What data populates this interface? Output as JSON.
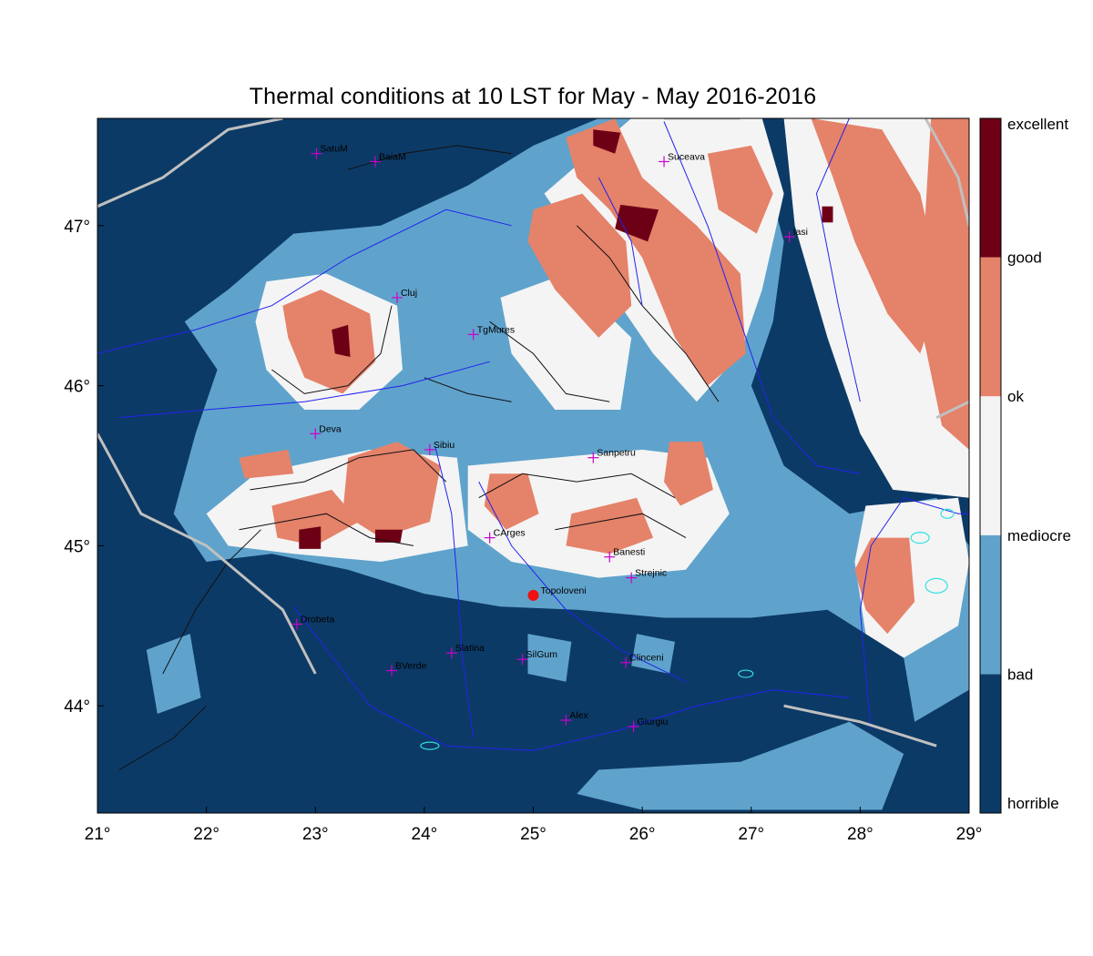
{
  "title": "Thermal conditions at 10 LST for May - May  2016-2016",
  "x_ticks": [
    {
      "value": 21,
      "label": "21°"
    },
    {
      "value": 22,
      "label": "22°"
    },
    {
      "value": 23,
      "label": "23°"
    },
    {
      "value": 24,
      "label": "24°"
    },
    {
      "value": 25,
      "label": "25°"
    },
    {
      "value": 26,
      "label": "26°"
    },
    {
      "value": 27,
      "label": "27°"
    },
    {
      "value": 28,
      "label": "28°"
    },
    {
      "value": 29,
      "label": "29°"
    }
  ],
  "y_ticks": [
    {
      "value": 44,
      "label": "44°"
    },
    {
      "value": 45,
      "label": "45°"
    },
    {
      "value": 46,
      "label": "46°"
    },
    {
      "value": 47,
      "label": "47°"
    }
  ],
  "extent": {
    "lon": [
      21,
      29
    ],
    "lat": [
      43.33,
      47.67
    ]
  },
  "legend": [
    {
      "label": "horrible",
      "color": "#0c3a66"
    },
    {
      "label": "bad",
      "color": "#5fa3cc"
    },
    {
      "label": "mediocre",
      "color": "#f4f4f4"
    },
    {
      "label": "ok",
      "color": "#e5826a"
    },
    {
      "label": "good",
      "color": "#6e0016"
    },
    {
      "label": "excellent",
      "color": ""
    }
  ],
  "legend_text": [
    "horrible",
    "bad",
    "mediocre",
    "ok",
    "good",
    "excellent"
  ],
  "colors": {
    "horrible": "#0c3a66",
    "bad": "#5fa3cc",
    "mediocre": "#f4f4f4",
    "ok": "#e5826a",
    "good": "#6e0016",
    "rivers": "#2222ee",
    "border": "#c0c0c0",
    "lakes": "#33e0e0",
    "station_marker": "#cc00cc",
    "highlight_marker": "#ee1111"
  },
  "stations": [
    {
      "name": "SatuM",
      "lon": 23.01,
      "lat": 47.45
    },
    {
      "name": "BaiaM",
      "lon": 23.55,
      "lat": 47.4
    },
    {
      "name": "Suceava",
      "lon": 26.2,
      "lat": 47.4
    },
    {
      "name": "Iasi",
      "lon": 27.35,
      "lat": 46.93
    },
    {
      "name": "Cluj",
      "lon": 23.75,
      "lat": 46.55
    },
    {
      "name": "TgMures",
      "lon": 24.45,
      "lat": 46.32
    },
    {
      "name": "Deva",
      "lon": 23.0,
      "lat": 45.7
    },
    {
      "name": "Sibiu",
      "lon": 24.05,
      "lat": 45.6
    },
    {
      "name": "Sanpetru",
      "lon": 25.55,
      "lat": 45.55
    },
    {
      "name": "CArges",
      "lon": 24.6,
      "lat": 45.05
    },
    {
      "name": "Banesti",
      "lon": 25.7,
      "lat": 44.93
    },
    {
      "name": "Strejnic",
      "lon": 25.9,
      "lat": 44.8
    },
    {
      "name": "Drobeta",
      "lon": 22.83,
      "lat": 44.51
    },
    {
      "name": "Slatina",
      "lon": 24.25,
      "lat": 44.33
    },
    {
      "name": "SilGum",
      "lon": 24.9,
      "lat": 44.29
    },
    {
      "name": "Clinceni",
      "lon": 25.85,
      "lat": 44.27
    },
    {
      "name": "BVerde",
      "lon": 23.7,
      "lat": 44.22
    },
    {
      "name": "Alex",
      "lon": 25.3,
      "lat": 43.91
    },
    {
      "name": "Giurgiu",
      "lon": 25.92,
      "lat": 43.87
    }
  ],
  "highlight_station": {
    "name": "Topoloveni",
    "lon": 25.0,
    "lat": 44.69
  },
  "regions": [
    {
      "level": "bad",
      "pts": [
        [
          22.2,
          46.6
        ],
        [
          22.8,
          46.95
        ],
        [
          23.6,
          47.0
        ],
        [
          24.4,
          47.25
        ],
        [
          25.0,
          47.5
        ],
        [
          25.6,
          47.67
        ],
        [
          26.6,
          47.67
        ],
        [
          27.1,
          47.4
        ],
        [
          27.3,
          46.9
        ],
        [
          27.2,
          46.4
        ],
        [
          27.0,
          46.0
        ],
        [
          27.3,
          45.5
        ],
        [
          27.9,
          45.2
        ],
        [
          28.7,
          45.3
        ],
        [
          29.0,
          45.0
        ],
        [
          29.0,
          44.1
        ],
        [
          28.5,
          43.9
        ],
        [
          28.4,
          44.3
        ],
        [
          27.7,
          44.6
        ],
        [
          27.0,
          44.55
        ],
        [
          26.2,
          44.55
        ],
        [
          25.4,
          44.6
        ],
        [
          24.7,
          44.62
        ],
        [
          24.0,
          44.7
        ],
        [
          23.3,
          44.85
        ],
        [
          22.6,
          44.95
        ],
        [
          22.0,
          44.9
        ],
        [
          21.7,
          45.2
        ],
        [
          21.9,
          45.7
        ],
        [
          22.1,
          46.1
        ],
        [
          21.8,
          46.4
        ]
      ]
    },
    {
      "level": "bad",
      "pts": [
        [
          21.45,
          44.35
        ],
        [
          21.85,
          44.45
        ],
        [
          21.95,
          44.05
        ],
        [
          21.55,
          43.95
        ]
      ]
    },
    {
      "level": "bad",
      "pts": [
        [
          25.6,
          43.6
        ],
        [
          26.9,
          43.65
        ],
        [
          27.9,
          43.9
        ],
        [
          28.4,
          43.7
        ],
        [
          28.2,
          43.35
        ],
        [
          26.0,
          43.35
        ],
        [
          25.4,
          43.45
        ]
      ]
    },
    {
      "level": "bad",
      "pts": [
        [
          24.95,
          44.45
        ],
        [
          25.35,
          44.4
        ],
        [
          25.3,
          44.15
        ],
        [
          24.95,
          44.2
        ]
      ]
    },
    {
      "level": "bad",
      "pts": [
        [
          25.95,
          44.45
        ],
        [
          26.3,
          44.4
        ],
        [
          26.25,
          44.2
        ],
        [
          25.9,
          44.25
        ]
      ]
    },
    {
      "level": "mediocre",
      "pts": [
        [
          25.9,
          47.67
        ],
        [
          27.1,
          47.67
        ],
        [
          27.3,
          47.2
        ],
        [
          27.1,
          46.6
        ],
        [
          26.9,
          46.2
        ],
        [
          26.5,
          45.9
        ],
        [
          26.1,
          46.2
        ],
        [
          25.7,
          46.6
        ],
        [
          25.3,
          47.0
        ],
        [
          25.1,
          47.2
        ]
      ]
    },
    {
      "level": "mediocre",
      "pts": [
        [
          27.3,
          47.67
        ],
        [
          29.0,
          47.67
        ],
        [
          29.0,
          45.3
        ],
        [
          28.3,
          45.35
        ],
        [
          28.0,
          45.7
        ],
        [
          27.7,
          46.3
        ],
        [
          27.4,
          47.0
        ]
      ]
    },
    {
      "level": "mediocre",
      "pts": [
        [
          28.05,
          45.25
        ],
        [
          28.9,
          45.3
        ],
        [
          29.0,
          44.9
        ],
        [
          28.9,
          44.5
        ],
        [
          28.4,
          44.3
        ],
        [
          28.05,
          44.45
        ],
        [
          27.95,
          44.9
        ]
      ]
    },
    {
      "level": "mediocre",
      "pts": [
        [
          22.55,
          46.65
        ],
        [
          23.1,
          46.7
        ],
        [
          23.75,
          46.5
        ],
        [
          23.8,
          46.1
        ],
        [
          23.4,
          45.85
        ],
        [
          22.9,
          45.85
        ],
        [
          22.55,
          46.1
        ],
        [
          22.45,
          46.4
        ]
      ]
    },
    {
      "level": "mediocre",
      "pts": [
        [
          22.45,
          45.45
        ],
        [
          23.5,
          45.6
        ],
        [
          24.3,
          45.55
        ],
        [
          24.4,
          45.0
        ],
        [
          23.6,
          44.9
        ],
        [
          22.8,
          44.95
        ],
        [
          22.2,
          45.0
        ],
        [
          22.0,
          45.2
        ]
      ]
    },
    {
      "level": "mediocre",
      "pts": [
        [
          24.4,
          45.5
        ],
        [
          25.2,
          45.55
        ],
        [
          26.0,
          45.6
        ],
        [
          26.6,
          45.55
        ],
        [
          26.8,
          45.2
        ],
        [
          26.4,
          44.85
        ],
        [
          25.6,
          44.8
        ],
        [
          24.8,
          44.9
        ],
        [
          24.4,
          45.1
        ]
      ]
    },
    {
      "level": "mediocre",
      "pts": [
        [
          24.7,
          46.55
        ],
        [
          25.3,
          46.7
        ],
        [
          25.9,
          46.3
        ],
        [
          25.8,
          45.85
        ],
        [
          25.2,
          45.85
        ],
        [
          24.8,
          46.2
        ]
      ]
    },
    {
      "level": "ok",
      "pts": [
        [
          25.3,
          47.55
        ],
        [
          25.75,
          47.67
        ],
        [
          26.0,
          47.3
        ],
        [
          26.5,
          47.0
        ],
        [
          26.9,
          46.7
        ],
        [
          26.95,
          46.2
        ],
        [
          26.6,
          46.0
        ],
        [
          26.3,
          46.3
        ],
        [
          26.0,
          46.8
        ],
        [
          25.7,
          47.1
        ],
        [
          25.4,
          47.3
        ]
      ]
    },
    {
      "level": "ok",
      "pts": [
        [
          25.0,
          47.1
        ],
        [
          25.45,
          47.2
        ],
        [
          25.85,
          46.9
        ],
        [
          25.9,
          46.5
        ],
        [
          25.6,
          46.3
        ],
        [
          25.2,
          46.6
        ],
        [
          24.95,
          46.9
        ]
      ]
    },
    {
      "level": "ok",
      "pts": [
        [
          26.6,
          47.45
        ],
        [
          27.0,
          47.5
        ],
        [
          27.2,
          47.2
        ],
        [
          27.05,
          46.95
        ],
        [
          26.7,
          47.1
        ]
      ]
    },
    {
      "level": "ok",
      "pts": [
        [
          27.55,
          47.67
        ],
        [
          28.2,
          47.6
        ],
        [
          28.55,
          47.2
        ],
        [
          28.75,
          46.6
        ],
        [
          28.55,
          46.2
        ],
        [
          28.25,
          46.45
        ],
        [
          27.95,
          46.9
        ],
        [
          27.75,
          47.3
        ]
      ]
    },
    {
      "level": "ok",
      "pts": [
        [
          28.65,
          47.67
        ],
        [
          29.0,
          47.67
        ],
        [
          29.0,
          45.6
        ],
        [
          28.75,
          45.75
        ],
        [
          28.55,
          46.4
        ],
        [
          28.6,
          47.1
        ]
      ]
    },
    {
      "level": "ok",
      "pts": [
        [
          28.1,
          45.05
        ],
        [
          28.45,
          45.05
        ],
        [
          28.5,
          44.65
        ],
        [
          28.25,
          44.45
        ],
        [
          28.05,
          44.6
        ],
        [
          27.95,
          44.85
        ]
      ]
    },
    {
      "level": "ok",
      "pts": [
        [
          22.7,
          46.5
        ],
        [
          23.05,
          46.6
        ],
        [
          23.5,
          46.45
        ],
        [
          23.55,
          46.15
        ],
        [
          23.25,
          45.95
        ],
        [
          22.9,
          46.05
        ],
        [
          22.75,
          46.3
        ]
      ]
    },
    {
      "level": "ok",
      "pts": [
        [
          23.3,
          45.55
        ],
        [
          23.75,
          45.65
        ],
        [
          24.15,
          45.5
        ],
        [
          24.05,
          45.15
        ],
        [
          23.6,
          45.05
        ],
        [
          23.25,
          45.2
        ]
      ]
    },
    {
      "level": "ok",
      "pts": [
        [
          22.6,
          45.25
        ],
        [
          23.15,
          45.35
        ],
        [
          23.4,
          45.15
        ],
        [
          23.0,
          45.0
        ],
        [
          22.65,
          45.05
        ]
      ]
    },
    {
      "level": "ok",
      "pts": [
        [
          22.3,
          45.55
        ],
        [
          22.75,
          45.6
        ],
        [
          22.8,
          45.45
        ],
        [
          22.35,
          45.42
        ]
      ]
    },
    {
      "level": "ok",
      "pts": [
        [
          24.6,
          45.45
        ],
        [
          24.95,
          45.45
        ],
        [
          25.05,
          45.2
        ],
        [
          24.75,
          45.1
        ],
        [
          24.55,
          45.25
        ]
      ]
    },
    {
      "level": "ok",
      "pts": [
        [
          25.35,
          45.2
        ],
        [
          25.95,
          45.3
        ],
        [
          26.1,
          45.05
        ],
        [
          25.7,
          44.95
        ],
        [
          25.3,
          45.0
        ]
      ]
    },
    {
      "level": "ok",
      "pts": [
        [
          26.25,
          45.65
        ],
        [
          26.55,
          45.65
        ],
        [
          26.65,
          45.35
        ],
        [
          26.35,
          45.25
        ],
        [
          26.2,
          45.4
        ]
      ]
    },
    {
      "level": "good",
      "pts": [
        [
          25.8,
          47.13
        ],
        [
          26.15,
          47.1
        ],
        [
          26.05,
          46.9
        ],
        [
          25.75,
          46.98
        ]
      ]
    },
    {
      "level": "good",
      "pts": [
        [
          25.55,
          47.6
        ],
        [
          25.8,
          47.58
        ],
        [
          25.75,
          47.45
        ],
        [
          25.55,
          47.5
        ]
      ]
    },
    {
      "level": "good",
      "pts": [
        [
          23.15,
          46.35
        ],
        [
          23.3,
          46.38
        ],
        [
          23.32,
          46.18
        ],
        [
          23.18,
          46.2
        ]
      ]
    },
    {
      "level": "good",
      "pts": [
        [
          22.85,
          45.1
        ],
        [
          23.05,
          45.12
        ],
        [
          23.05,
          44.98
        ],
        [
          22.85,
          44.98
        ]
      ]
    },
    {
      "level": "good",
      "pts": [
        [
          23.55,
          45.1
        ],
        [
          23.8,
          45.1
        ],
        [
          23.78,
          45.02
        ],
        [
          23.55,
          45.02
        ]
      ]
    },
    {
      "level": "good",
      "pts": [
        [
          27.65,
          47.12
        ],
        [
          27.75,
          47.12
        ],
        [
          27.75,
          47.02
        ],
        [
          27.65,
          47.02
        ]
      ]
    }
  ]
}
